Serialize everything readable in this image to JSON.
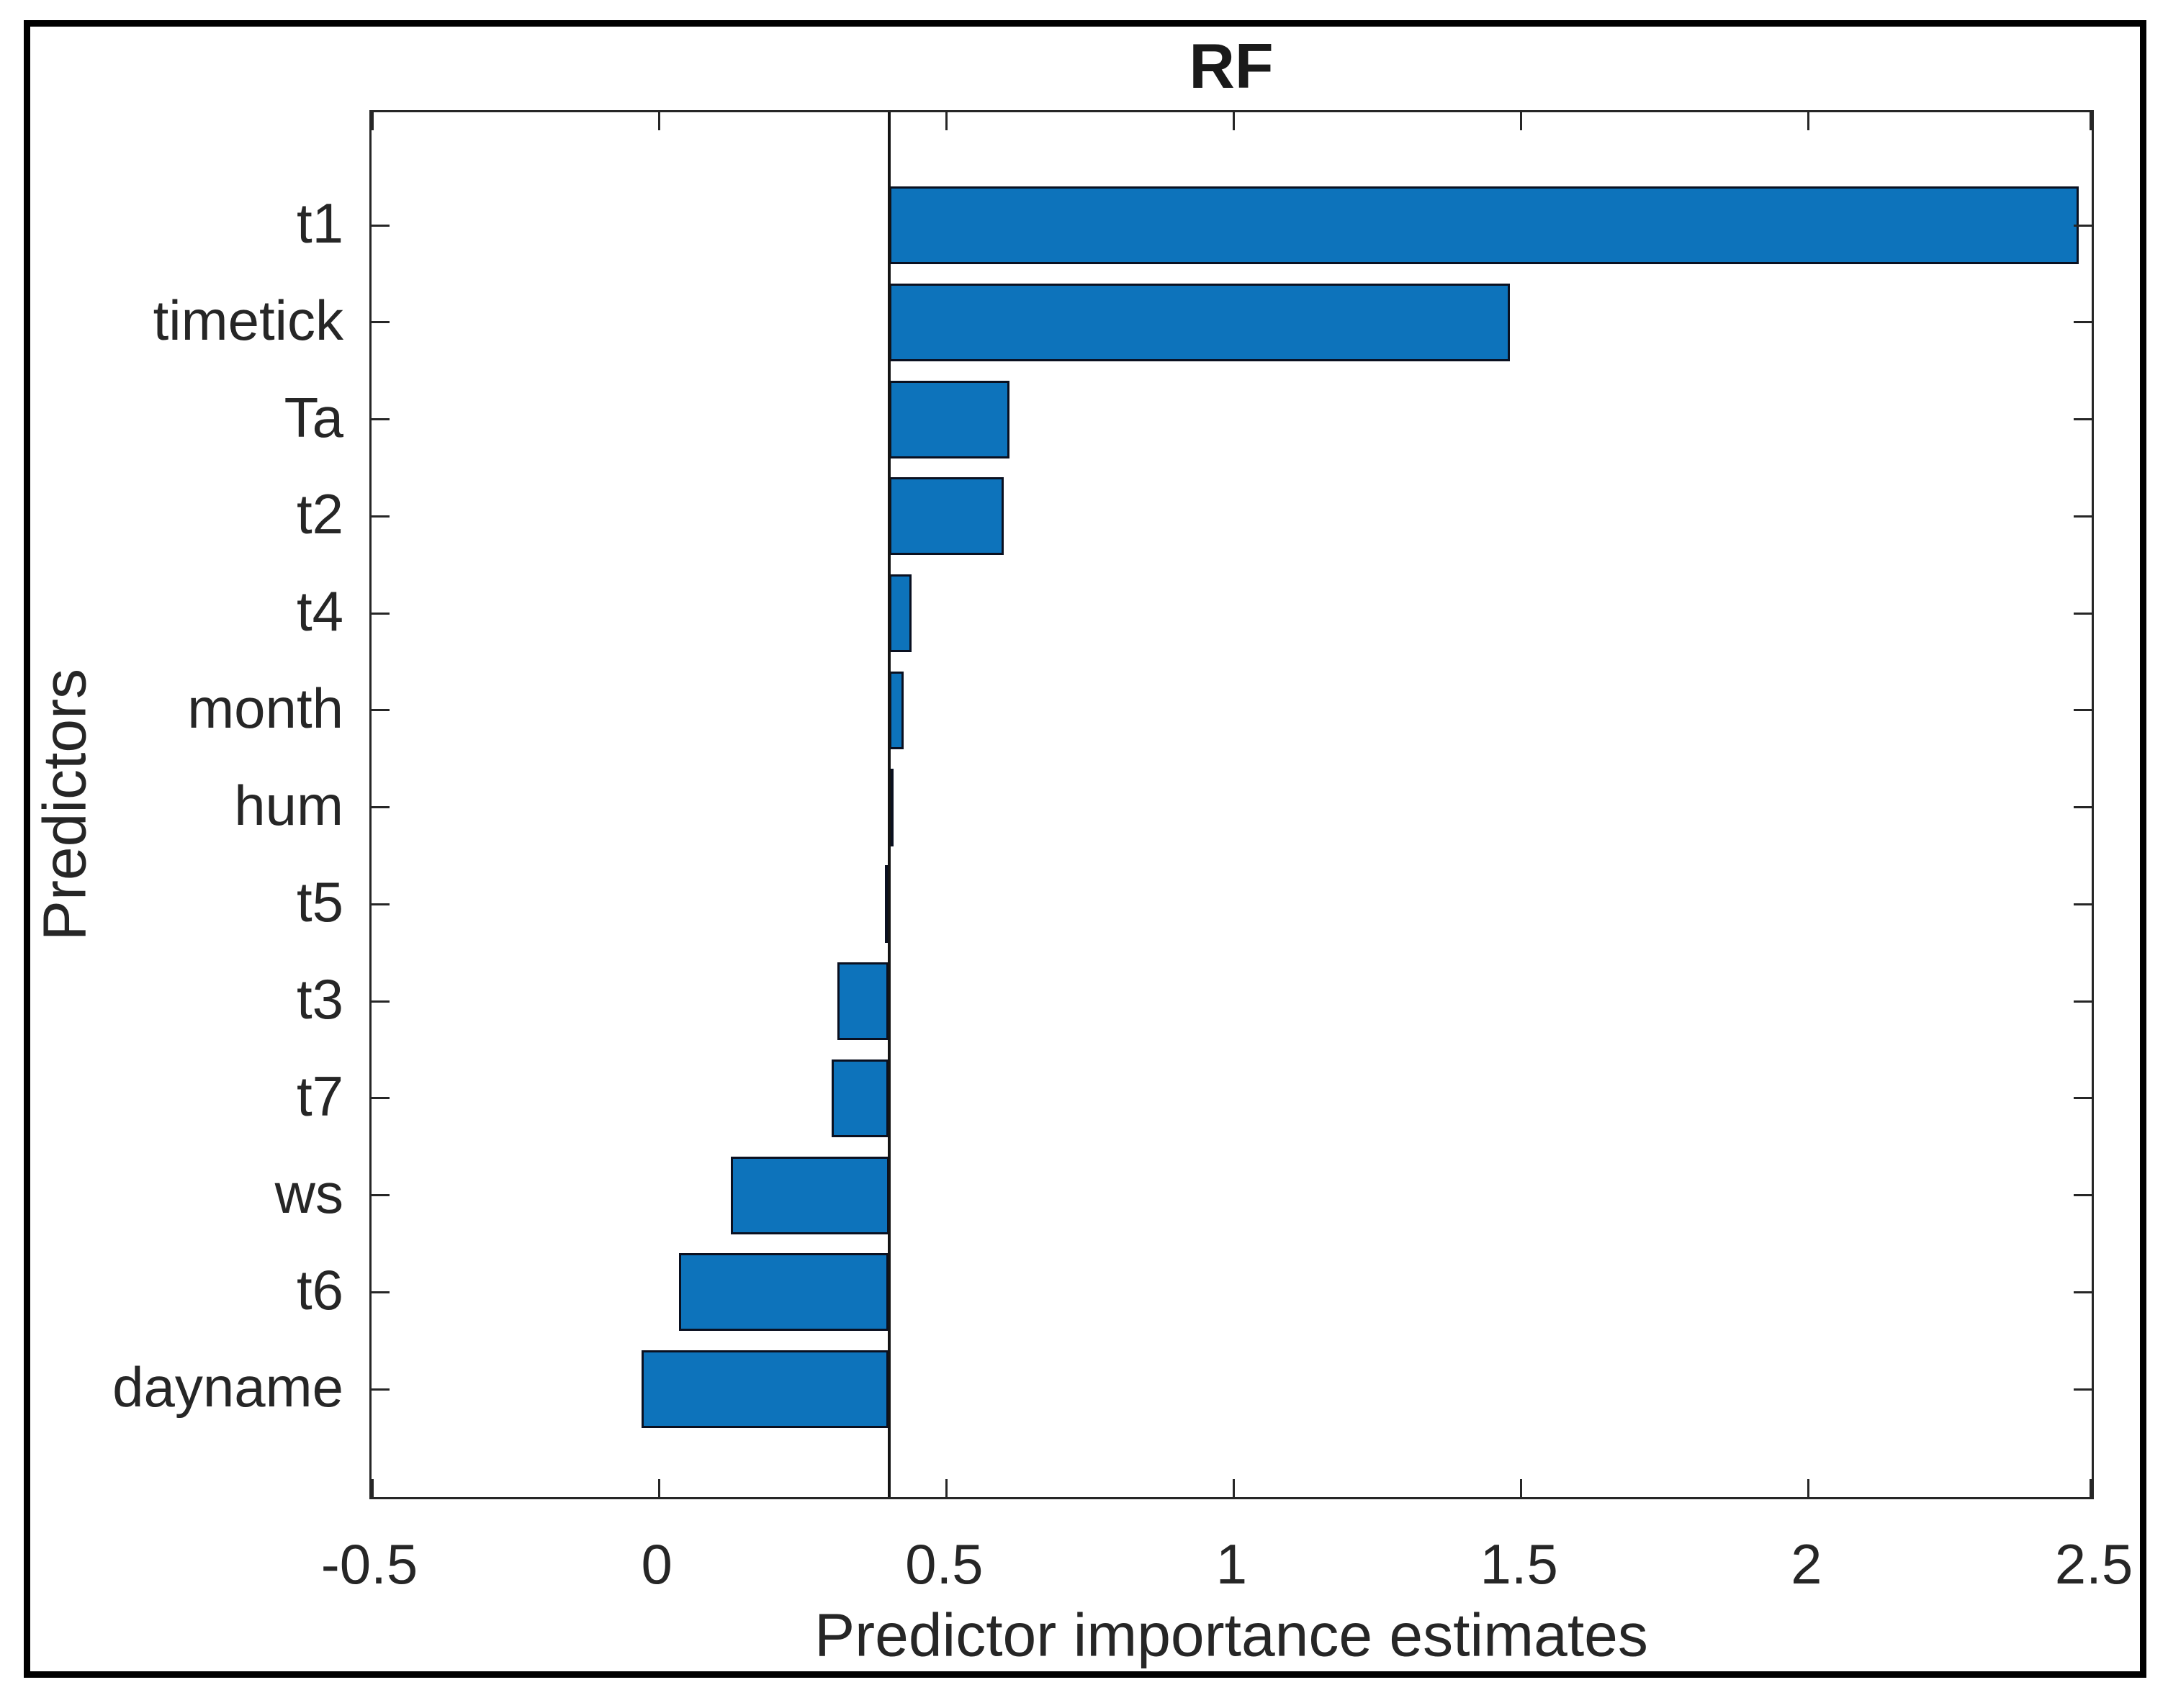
{
  "title": "RF",
  "chart_data": {
    "type": "bar",
    "orientation": "horizontal",
    "title": "RF",
    "xlabel": "Predictor importance estimates",
    "ylabel": "Predictors",
    "categories": [
      "t1",
      "timetick",
      "Ta",
      "t2",
      "t4",
      "month",
      "hum",
      "t5",
      "t3",
      "t7",
      "ws",
      "t6",
      "dayname"
    ],
    "values": [
      2.47,
      1.48,
      0.61,
      0.6,
      0.44,
      0.425,
      0.4,
      0.393,
      0.31,
      0.3,
      0.125,
      0.035,
      -0.03
    ],
    "baseline": 0.4,
    "xlim": [
      -0.5,
      2.5
    ],
    "x_ticks": [
      -0.5,
      0,
      0.5,
      1,
      1.5,
      2,
      2.5
    ],
    "x_tick_labels": [
      "-0.5",
      "0",
      "0.5",
      "1",
      "1.5",
      "2",
      "2.5"
    ],
    "grid": false,
    "legend": null,
    "colors": {
      "bar_fill": "#0d73bb",
      "bar_edge": "#0a1020",
      "axis": "#262626",
      "baseline": "#141414",
      "figure_border": "#000000",
      "background": "#ffffff"
    }
  }
}
